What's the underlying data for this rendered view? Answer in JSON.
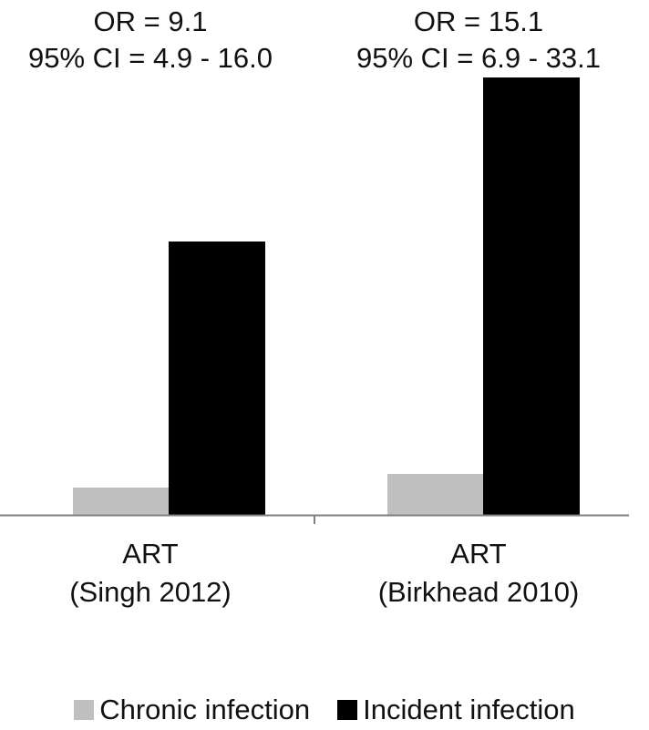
{
  "chart_data": {
    "type": "bar",
    "categories": [
      {
        "line1": "ART",
        "line2": "(Singh 2012)"
      },
      {
        "line1": "ART",
        "line2": "(Birkhead 2010)"
      }
    ],
    "annotations": [
      {
        "line1": "OR = 9.1",
        "line2": "95% CI = 4.9 - 16.0"
      },
      {
        "line1": "OR = 15.1",
        "line2": "95% CI = 6.9 - 33.1"
      }
    ],
    "series": [
      {
        "name": "Chronic infection",
        "color": "#bfbfbf",
        "values": [
          0.1,
          0.15
        ]
      },
      {
        "name": "Incident infection",
        "color": "#000000",
        "values": [
          1.0,
          1.6
        ]
      }
    ],
    "ylim": [
      0,
      1.75
    ],
    "grid": false,
    "y_axis_visible": false,
    "legend_position": "bottom",
    "title": "",
    "xlabel": "",
    "ylabel": ""
  }
}
